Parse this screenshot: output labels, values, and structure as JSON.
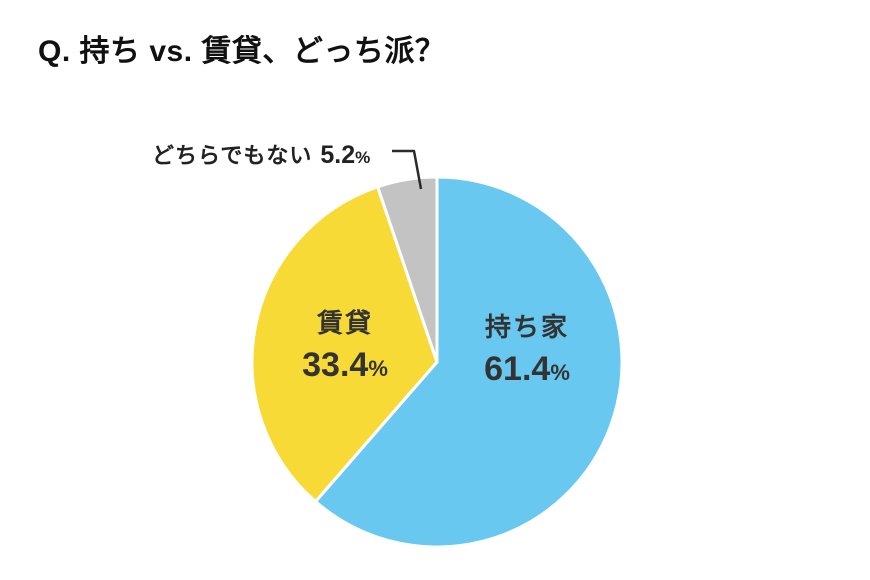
{
  "title": "Q. 持ち vs. 賃貸、どっち派？",
  "chart_data": {
    "type": "pie",
    "title": "Q. 持ち vs. 賃貸、どっち派？",
    "unit": "%",
    "start_angle_deg": -90,
    "direction": "clockwise",
    "background": "#ffffff",
    "legend": "none",
    "slices": [
      {
        "label": "持ち家",
        "value": 61.4,
        "color": "#69c8f0",
        "label_position": "inside"
      },
      {
        "label": "賃貸",
        "value": 33.4,
        "color": "#f8da36",
        "label_position": "inside"
      },
      {
        "label": "どちらでもない",
        "value": 5.2,
        "color": "#c3c3c3",
        "label_position": "callout"
      }
    ]
  }
}
